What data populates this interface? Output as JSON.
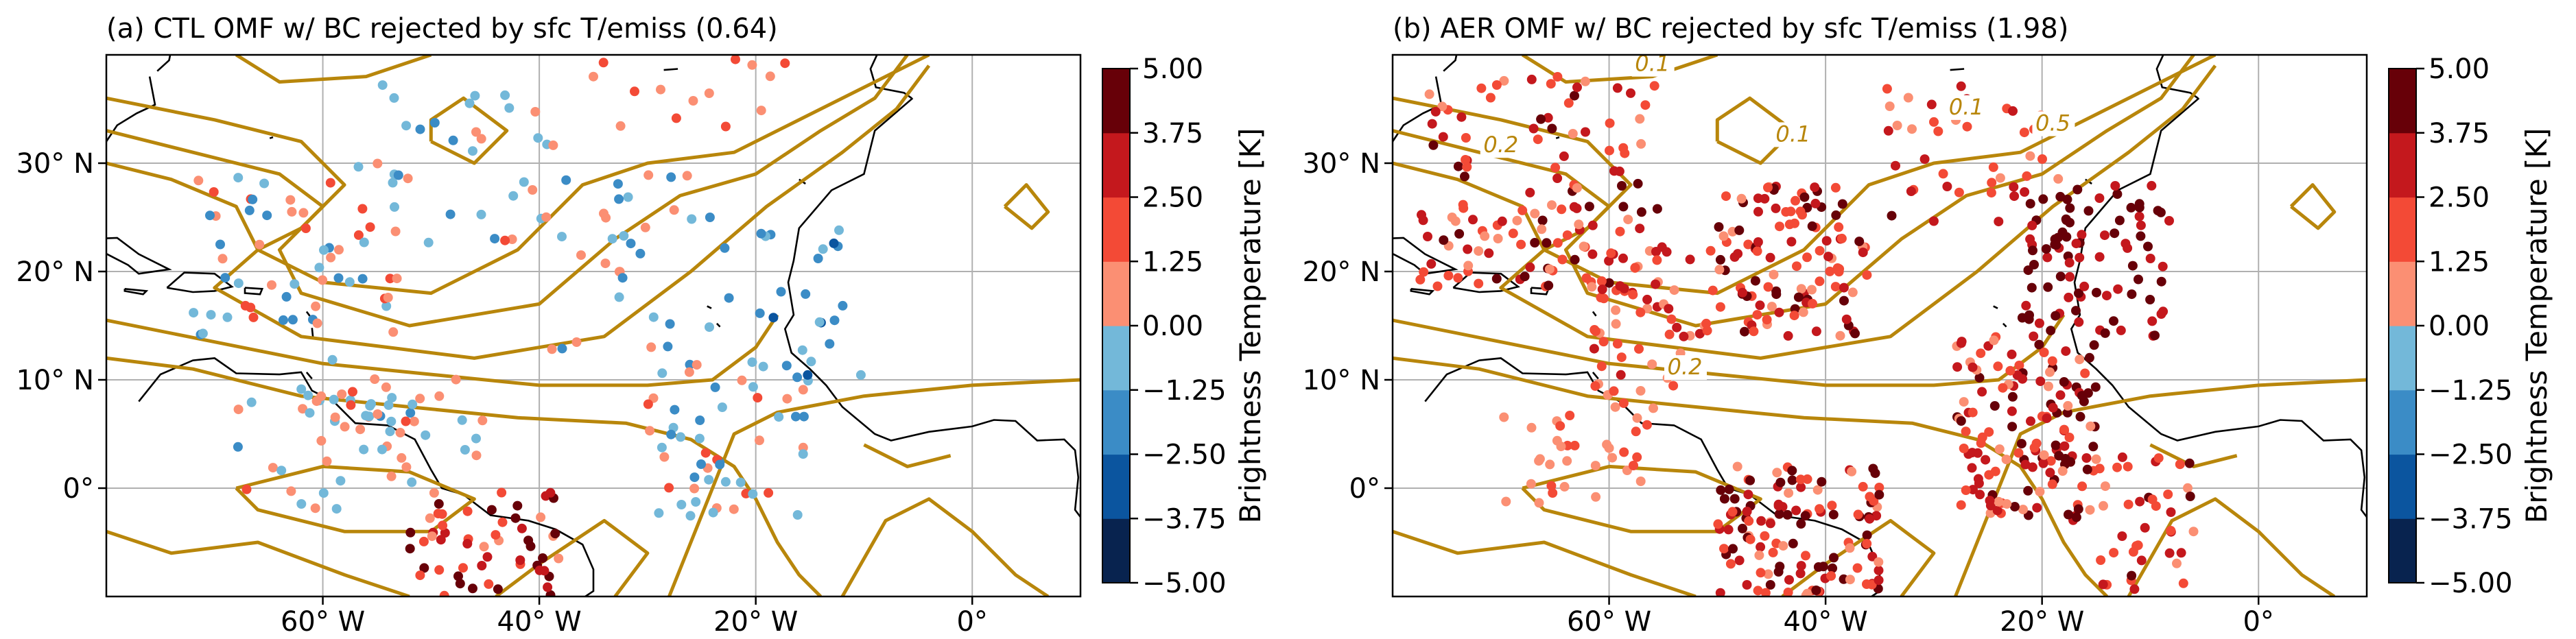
{
  "panels": [
    {
      "id": "a",
      "title": "(a) CTL OMF w/ BC rejected by sfc T/emiss (0.64)",
      "lon_ticks": [
        "60° W",
        "40° W",
        "20° W",
        "0°"
      ],
      "lat_ticks": [
        "30° N",
        "20° N",
        "10° N",
        "0°"
      ],
      "colorbar": {
        "label": "Brightness Temperature [K]",
        "ticks": [
          "5.00",
          "3.75",
          "2.50",
          "1.25",
          "0.00",
          "−1.25",
          "−2.50",
          "−3.75",
          "−5.00"
        ]
      },
      "contour_labels": []
    },
    {
      "id": "b",
      "title": "(b) AER OMF w/ BC rejected by sfc T/emiss (1.98)",
      "lon_ticks": [
        "60° W",
        "40° W",
        "20° W",
        "0°"
      ],
      "lat_ticks": [
        "30° N",
        "20° N",
        "10° N",
        "0°"
      ],
      "colorbar": {
        "label": "Brightness Temperature [K]",
        "ticks": [
          "5.00",
          "3.75",
          "2.50",
          "1.25",
          "0.00",
          "−1.25",
          "−2.50",
          "−3.75",
          "−5.00"
        ]
      },
      "contour_labels": [
        "0.1",
        "0.1",
        "0.2",
        "0.1",
        "0.2",
        "0.5"
      ]
    }
  ],
  "map_extent": {
    "lon_min": -80,
    "lon_max": 10,
    "lat_min": -10,
    "lat_max": 40
  },
  "colorbar_levels": [
    -5.0,
    -3.75,
    -2.5,
    -1.25,
    0.0,
    1.25,
    2.5,
    3.75,
    5.0
  ],
  "colorbar_colors": [
    "#08234f",
    "#0b559f",
    "#3b8cc6",
    "#73b8d9",
    "#fb8f73",
    "#f34a36",
    "#c4181d",
    "#670008"
  ],
  "contour_color": "#b8860b",
  "coast_color": "#000000",
  "grid_color": "#b0b0b0"
}
